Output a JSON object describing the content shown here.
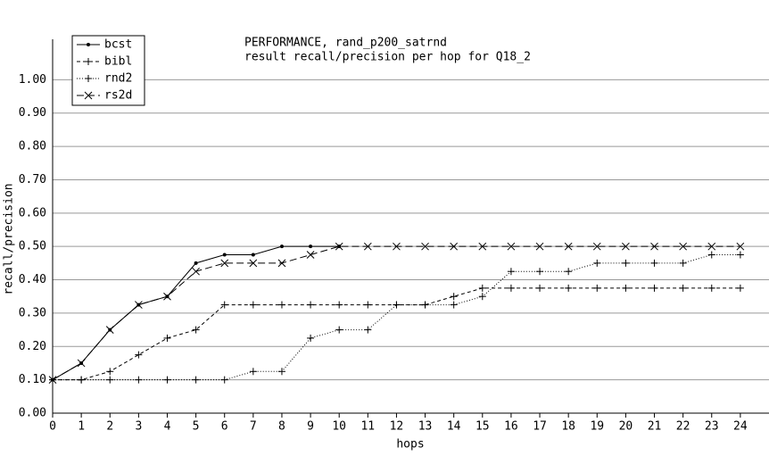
{
  "chart_data": {
    "type": "line",
    "title": "PERFORMANCE, rand_p200_satrnd",
    "subtitle": "result recall/precision per hop for Q18_2",
    "x_label": "hops",
    "y_label": "recall/precision",
    "x": [
      0,
      1,
      2,
      3,
      4,
      5,
      6,
      7,
      8,
      9,
      10,
      11,
      12,
      13,
      14,
      15,
      16,
      17,
      18,
      19,
      20,
      21,
      22,
      23,
      24
    ],
    "xlim": [
      0,
      25
    ],
    "xticks": [
      0,
      1,
      2,
      3,
      4,
      5,
      6,
      7,
      8,
      9,
      10,
      11,
      12,
      13,
      14,
      15,
      16,
      17,
      18,
      19,
      20,
      21,
      22,
      23,
      24
    ],
    "ylim": [
      0,
      1.1
    ],
    "yticks": [
      {
        "value": 0,
        "label": "0.00"
      },
      {
        "value": 0.1,
        "label": "0.10"
      },
      {
        "value": 0.2,
        "label": "0.20"
      },
      {
        "value": 0.3,
        "label": "0.30"
      },
      {
        "value": 0.4,
        "label": "0.40"
      },
      {
        "value": 0.5,
        "label": "0.50"
      },
      {
        "value": 0.6,
        "label": "0.60"
      },
      {
        "value": 0.7,
        "label": "0.70"
      },
      {
        "value": 0.8,
        "label": "0.80"
      },
      {
        "value": 0.9,
        "label": "0.90"
      },
      {
        "value": 1,
        "label": "1.00"
      }
    ],
    "grid": true,
    "legend": "upper left",
    "series": [
      {
        "name": "bcst",
        "color": "#000000",
        "style": "solid",
        "marker": "dot",
        "values": [
          0.1,
          0.15,
          0.25,
          0.325,
          0.35,
          0.45,
          0.475,
          0.475,
          0.5,
          0.5,
          0.5,
          null,
          null,
          null,
          null,
          null,
          null,
          null,
          null,
          null,
          null,
          null,
          null,
          null,
          null
        ]
      },
      {
        "name": "bibl",
        "color": "#000000",
        "style": "dashed",
        "marker": "plus",
        "values": [
          0.1,
          0.1,
          0.125,
          0.175,
          0.225,
          0.25,
          0.325,
          0.325,
          0.325,
          0.325,
          0.325,
          0.325,
          0.325,
          0.325,
          0.35,
          0.375,
          0.375,
          0.375,
          0.375,
          0.375,
          0.375,
          0.375,
          0.375,
          0.375,
          0.375
        ]
      },
      {
        "name": "rnd2",
        "color": "#000000",
        "style": "dotted",
        "marker": "plus",
        "values": [
          0.1,
          0.1,
          0.1,
          0.1,
          0.1,
          0.1,
          0.1,
          0.125,
          0.125,
          0.225,
          0.25,
          0.25,
          0.325,
          0.325,
          0.325,
          0.35,
          0.425,
          0.425,
          0.425,
          0.45,
          0.45,
          0.45,
          0.45,
          0.475,
          0.475
        ]
      },
      {
        "name": "rs2d",
        "color": "#000000",
        "style": "longdash",
        "marker": "x",
        "values": [
          0.1,
          0.15,
          0.25,
          0.325,
          0.35,
          0.425,
          0.45,
          0.45,
          0.45,
          0.475,
          0.5,
          0.5,
          0.5,
          0.5,
          0.5,
          0.5,
          0.5,
          0.5,
          0.5,
          0.5,
          0.5,
          0.5,
          0.5,
          0.5,
          0.5
        ]
      }
    ]
  }
}
